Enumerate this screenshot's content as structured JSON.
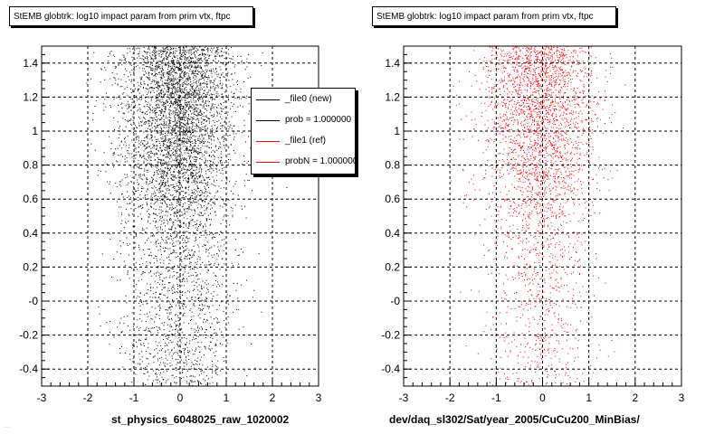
{
  "panels": [
    {
      "title": "StEMB globtrk: log10 impact param from prim vtx, ftpc",
      "xlabel": "st_physics_6048025_raw_1020002"
    },
    {
      "title": "StEMB globtrk: log10 impact param from prim vtx, ftpc",
      "xlabel": "dev/daq_sl302/Sat/year_2005/CuCu200_MinBias/"
    }
  ],
  "legend": {
    "entries": [
      {
        "label": "_file0 (new)",
        "color": "#000000"
      },
      {
        "label": "prob = 1.000000",
        "color": "#000000"
      },
      {
        "label": "_file1 (ref)",
        "color": "#ff0000"
      },
      {
        "label": "probN = 1.000000",
        "color": "#ff0000"
      }
    ]
  },
  "footer": "...",
  "chart_data": [
    {
      "type": "scatter",
      "title": "StEMB globtrk: log10 impact param from prim vtx, ftpc",
      "xlabel": "st_physics_6048025_raw_1020002",
      "ylabel": "",
      "xlim": [
        -3,
        3
      ],
      "ylim": [
        -0.5,
        1.5
      ],
      "xticks": [
        "-3",
        "-2",
        "-1",
        "0",
        "1",
        "2",
        "3"
      ],
      "yticks": [
        "-0.4",
        "-0.2",
        "-0",
        "0.2",
        "0.4",
        "0.6",
        "0.8",
        "1",
        "1.2",
        "1.4"
      ],
      "grid": true,
      "color": "#000000",
      "density_profile": {
        "x_center": -0.05,
        "x_sigma": 0.6,
        "y_bins": [
          -0.5,
          -0.3,
          -0.1,
          0.1,
          0.3,
          0.5,
          0.7,
          0.9,
          1.1,
          1.3,
          1.5
        ],
        "relative_density": [
          0.25,
          0.3,
          0.28,
          0.3,
          0.35,
          0.55,
          0.8,
          0.9,
          1.0,
          1.0
        ]
      }
    },
    {
      "type": "scatter",
      "title": "StEMB globtrk: log10 impact param from prim vtx, ftpc",
      "xlabel": "dev/daq_sl302/Sat/year_2005/CuCu200_MinBias/",
      "ylabel": "",
      "xlim": [
        -3,
        3
      ],
      "ylim": [
        -0.5,
        1.5
      ],
      "xticks": [
        "-3",
        "-2",
        "-1",
        "0",
        "1",
        "2",
        "3"
      ],
      "yticks": [
        "-0.4",
        "-0.2",
        "-0",
        "0.2",
        "0.4",
        "0.6",
        "0.8",
        "1",
        "1.2",
        "1.4"
      ],
      "grid": true,
      "color": "#ff0000",
      "density_profile": {
        "x_center": -0.05,
        "x_sigma": 0.6,
        "y_bins": [
          -0.5,
          -0.3,
          -0.1,
          0.1,
          0.3,
          0.5,
          0.7,
          0.9,
          1.1,
          1.3,
          1.5
        ],
        "relative_density": [
          0.15,
          0.18,
          0.18,
          0.2,
          0.25,
          0.4,
          0.6,
          0.7,
          0.8,
          0.85
        ]
      }
    }
  ]
}
